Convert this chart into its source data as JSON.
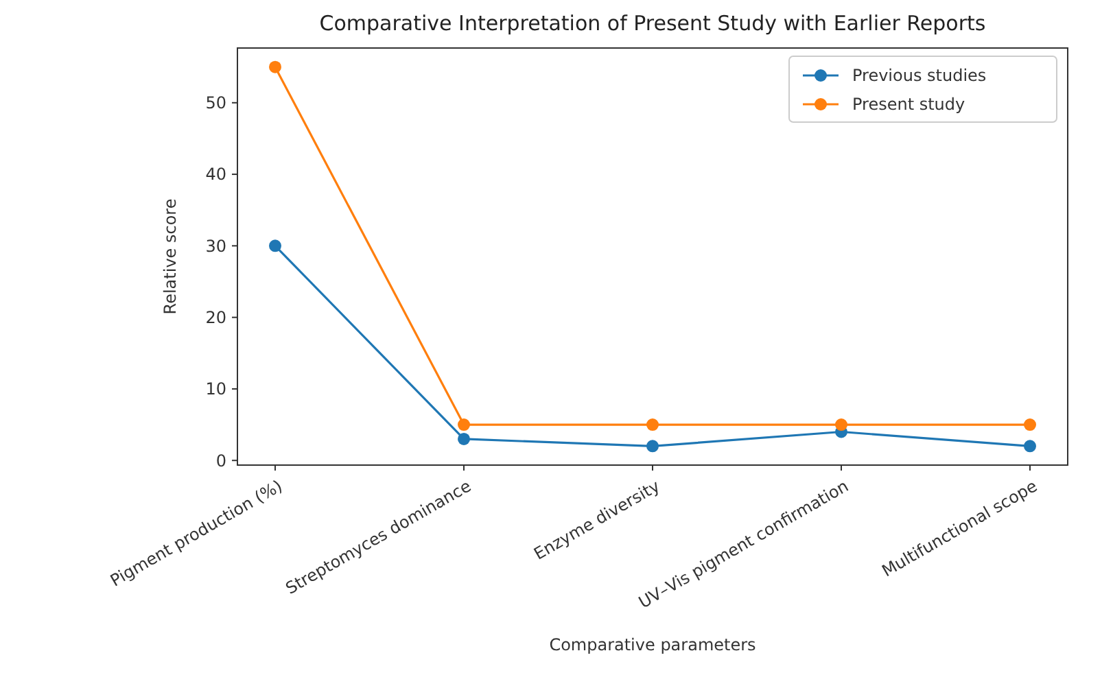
{
  "chart_data": {
    "type": "line",
    "title": "Comparative Interpretation of Present Study with Earlier Reports",
    "xlabel": "Comparative parameters",
    "ylabel": "Relative score",
    "categories": [
      "Pigment production (%)",
      "Streptomyces dominance",
      "Enzyme diversity",
      "UV–Vis pigment confirmation",
      "Multifunctional scope"
    ],
    "series": [
      {
        "name": "Previous studies",
        "color": "#1f77b4",
        "values": [
          30,
          3,
          2,
          4,
          2
        ]
      },
      {
        "name": "Present study",
        "color": "#ff7f0e",
        "values": [
          55,
          5,
          5,
          5,
          5
        ]
      }
    ],
    "ylim": [
      -0.65,
      57.65
    ],
    "yticks": [
      0,
      10,
      20,
      30,
      40,
      50
    ],
    "marker": "circle",
    "legend": "top right",
    "grid": false
  }
}
